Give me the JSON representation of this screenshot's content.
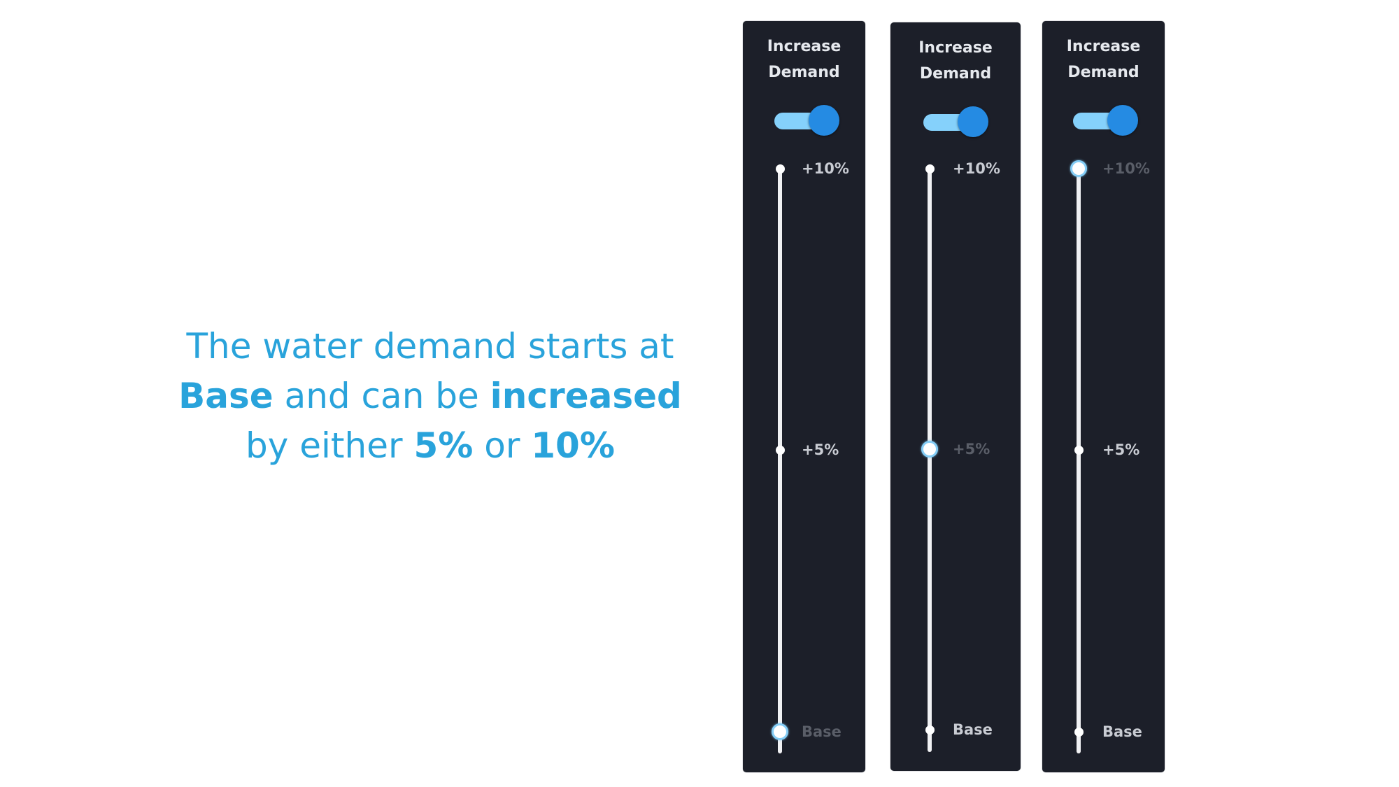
{
  "caption": {
    "line1": "The water demand starts at",
    "line2_bold_a": "Base",
    "line2_text": " and can be ",
    "line2_bold_b": "increased",
    "line3_text_a": "by either ",
    "line3_bold_a": "5%",
    "line3_text_b": " or ",
    "line3_bold_b": "10%"
  },
  "colors": {
    "caption": "#29a3db",
    "panel_bg": "#1c1f29",
    "toggle_track": "#85d1fb",
    "toggle_knob": "#258be3",
    "thumb_ring": "#84cdf6"
  },
  "panels": [
    {
      "title_line1": "Increase",
      "title_line2": "Demand",
      "toggle_on": true,
      "selected": "Base",
      "ticks": [
        "+10%",
        "+5%",
        "Base"
      ]
    },
    {
      "title_line1": "Increase",
      "title_line2": "Demand",
      "toggle_on": true,
      "selected": "+5%",
      "ticks": [
        "+10%",
        "+5%",
        "Base"
      ]
    },
    {
      "title_line1": "Increase",
      "title_line2": "Demand",
      "toggle_on": true,
      "selected": "+10%",
      "ticks": [
        "+10%",
        "+5%",
        "Base"
      ]
    }
  ]
}
